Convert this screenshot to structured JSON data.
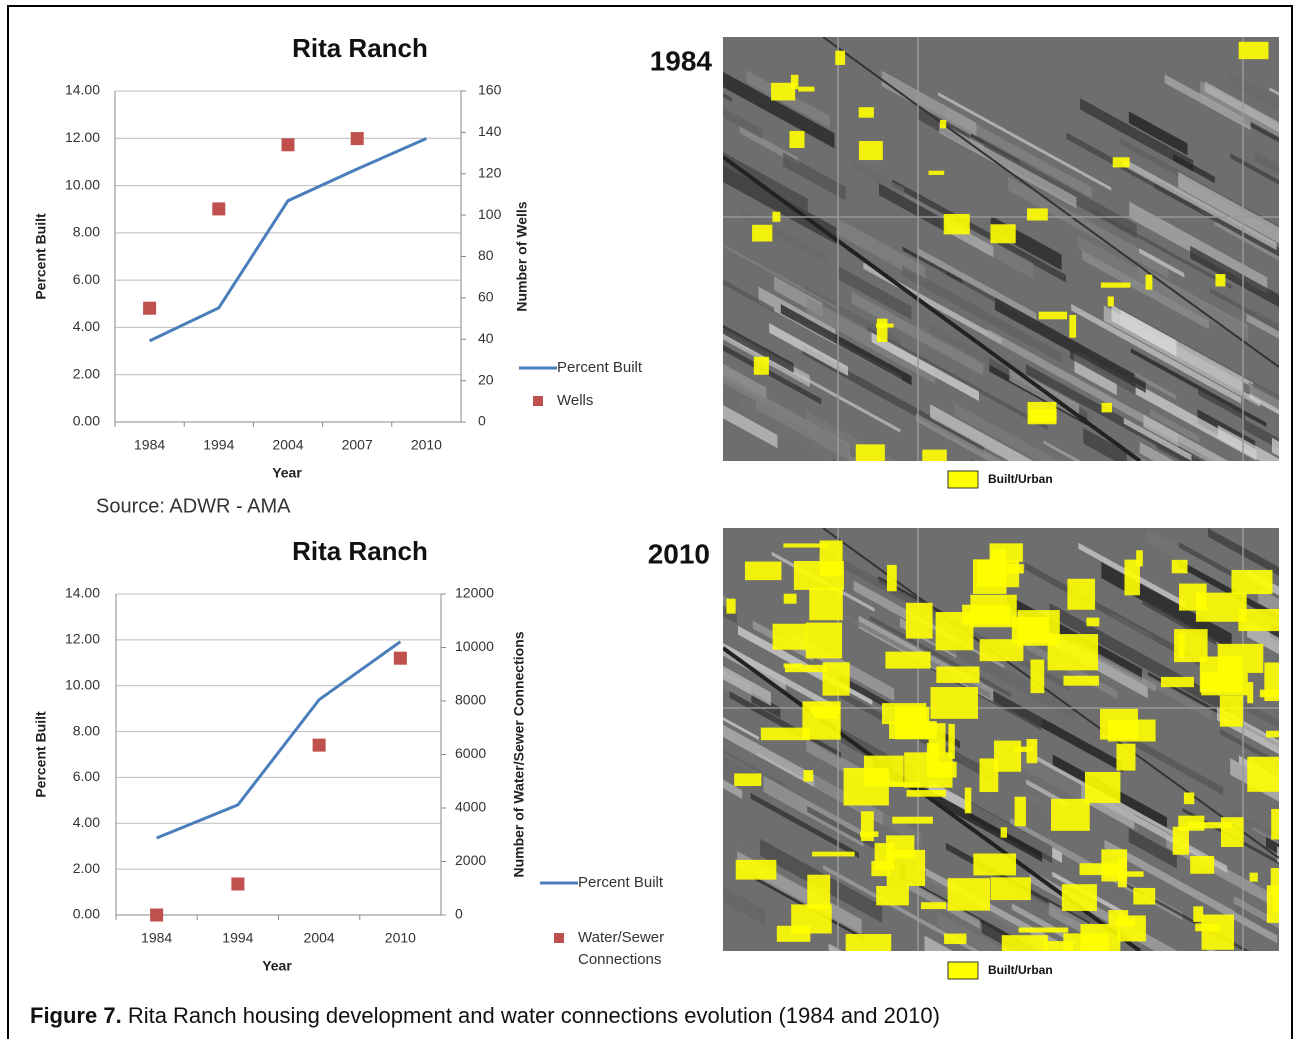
{
  "chart_data": [
    {
      "type": "line",
      "title": "Rita Ranch",
      "x_label": "Year",
      "y_label": "Percent Built",
      "y2_label": "Number of Wells",
      "categories": [
        "1984",
        "1994",
        "2004",
        "2007",
        "2010"
      ],
      "series": [
        {
          "name": "Percent Built",
          "color": "#4a7ebb",
          "mark": "line",
          "values": [
            3.43,
            4.83,
            9.36,
            10.7,
            11.99
          ]
        },
        {
          "name": "Wells",
          "color": "#c0504d",
          "mark": "square",
          "axis": "y2",
          "values": [
            55,
            103,
            134,
            137,
            null
          ]
        }
      ],
      "ylim": [
        0,
        14
      ],
      "yticks": [
        {
          "value": 0,
          "label": "0.00"
        },
        {
          "value": 2,
          "label": "2.00"
        },
        {
          "value": 4,
          "label": "4.00"
        },
        {
          "value": 6,
          "label": "6.00"
        },
        {
          "value": 8,
          "label": "8.00"
        },
        {
          "value": 10,
          "label": "10.00"
        },
        {
          "value": 12,
          "label": "12.00"
        },
        {
          "value": 14,
          "label": "14.00"
        }
      ],
      "y2lim": [
        0,
        160
      ],
      "y2ticks": [
        0,
        20,
        40,
        60,
        80,
        100,
        120,
        140,
        160
      ],
      "grid": true,
      "legend": "right"
    },
    {
      "type": "line",
      "title": "Rita Ranch",
      "x_label": "Year",
      "y_label": "Percent Built",
      "y2_label": "Number of Water/Sewer Connections",
      "categories": [
        "1984",
        "1994",
        "2004",
        "2010"
      ],
      "series": [
        {
          "name": "Percent Built",
          "color": "#4a7ebb",
          "mark": "line",
          "values": [
            3.36,
            4.8,
            9.39,
            11.92
          ]
        },
        {
          "name": "Water/Sewer Connections",
          "color": "#c0504d",
          "mark": "square",
          "axis": "y2",
          "values": [
            0,
            1160,
            6350,
            9600
          ]
        }
      ],
      "ylim": [
        0,
        14
      ],
      "yticks": [
        {
          "value": 0,
          "label": "0.00"
        },
        {
          "value": 2,
          "label": "2.00"
        },
        {
          "value": 4,
          "label": "4.00"
        },
        {
          "value": 6,
          "label": "6.00"
        },
        {
          "value": 8,
          "label": "8.00"
        },
        {
          "value": 10,
          "label": "10.00"
        },
        {
          "value": 12,
          "label": "12.00"
        },
        {
          "value": 14,
          "label": "14.00"
        }
      ],
      "y2lim": [
        0,
        12000
      ],
      "y2ticks": [
        0,
        2000,
        4000,
        6000,
        8000,
        10000,
        12000
      ],
      "grid": true,
      "legend": "right"
    }
  ],
  "source": "Source: ADWR - AMA",
  "maps": [
    {
      "year": "1984",
      "legend": "Built/Urban",
      "legend_color": "#ffff00"
    },
    {
      "year": "2010",
      "legend": "Built/Urban",
      "legend_color": "#ffff00"
    }
  ],
  "caption": {
    "label": "Figure 7.",
    "text": "Rita Ranch housing development and water connections evolution (1984 and 2010)"
  }
}
